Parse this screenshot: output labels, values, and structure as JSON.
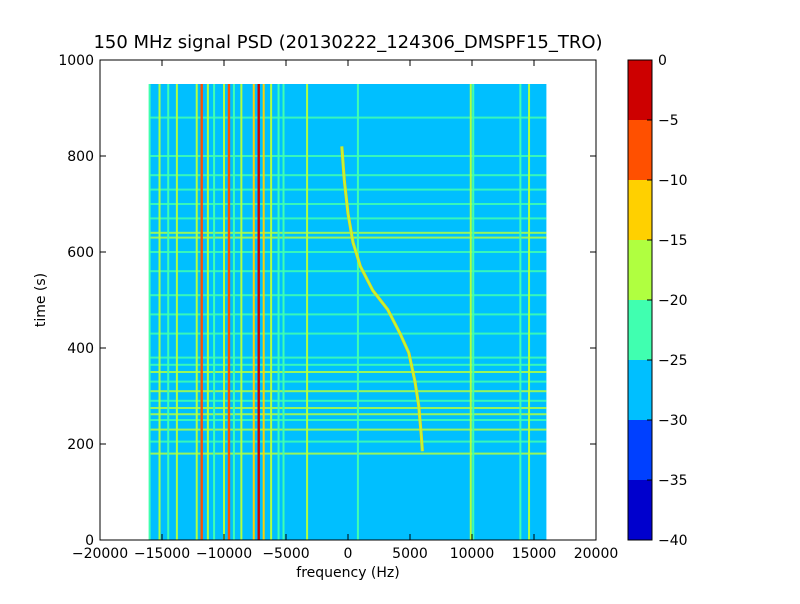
{
  "chart_data": {
    "type": "heatmap",
    "title": "150 MHz signal PSD (20130222_124306_DMSPF15_TRO)",
    "xlabel": "frequency (Hz)",
    "ylabel": "time (s)",
    "xlim": [
      -20000,
      20000
    ],
    "ylim": [
      0,
      1000
    ],
    "xticks": [
      -20000,
      -15000,
      -10000,
      -5000,
      0,
      5000,
      10000,
      15000,
      20000
    ],
    "xtick_labels": [
      "−20000",
      "−15000",
      "−10000",
      "−5000",
      "0",
      "5000",
      "10000",
      "15000",
      "20000"
    ],
    "yticks": [
      0,
      200,
      400,
      600,
      800,
      1000
    ],
    "ytick_labels": [
      "0",
      "200",
      "400",
      "600",
      "800",
      "1000"
    ],
    "data_extent": {
      "freq_range": [
        -16000,
        16000
      ],
      "time_range": [
        0,
        950
      ]
    },
    "background_level": [
      -30,
      -25
    ],
    "colorbar": {
      "levels": [
        -40,
        -35,
        -30,
        -25,
        -20,
        -15,
        -10,
        -5,
        0
      ],
      "tick_labels": [
        "−40",
        "−35",
        "−30",
        "−25",
        "−20",
        "−15",
        "−10",
        "−5",
        "0"
      ],
      "colors": [
        "#0000cd",
        "#0040ff",
        "#00bfff",
        "#40ffb0",
        "#b0ff40",
        "#ffd000",
        "#ff5000",
        "#cd0000"
      ]
    },
    "vertical_lines": [
      {
        "freq": -16000,
        "level": "#40ffb0"
      },
      {
        "freq": -15200,
        "level": "#b0ff40"
      },
      {
        "freq": -14500,
        "level": "#40ffb0"
      },
      {
        "freq": -13800,
        "level": "#b0ff40"
      },
      {
        "freq": -12200,
        "level": "#b0ff40"
      },
      {
        "freq": -11800,
        "level": "#ff5000"
      },
      {
        "freq": -11300,
        "level": "#b0ff40"
      },
      {
        "freq": -10800,
        "level": "#40ffb0"
      },
      {
        "freq": -10000,
        "level": "#b0ff40"
      },
      {
        "freq": -9600,
        "level": "#ff5000"
      },
      {
        "freq": -9200,
        "level": "#40ffb0"
      },
      {
        "freq": -8600,
        "level": "#b0ff40"
      },
      {
        "freq": -7600,
        "level": "#ffd000"
      },
      {
        "freq": -7200,
        "level": "#cd0000"
      },
      {
        "freq": -6800,
        "level": "#ffd000"
      },
      {
        "freq": -6200,
        "level": "#b0ff40"
      },
      {
        "freq": -5600,
        "level": "#40ffb0"
      },
      {
        "freq": -5200,
        "level": "#40ffb0"
      },
      {
        "freq": -3300,
        "level": "#b0ff40"
      },
      {
        "freq": 800,
        "level": "#40ffb0"
      },
      {
        "freq": 9900,
        "level": "#b0ff40"
      },
      {
        "freq": 10100,
        "level": "#40ffb0"
      },
      {
        "freq": 13900,
        "level": "#40ffb0"
      },
      {
        "freq": 14600,
        "level": "#b0ff40"
      }
    ],
    "horizontal_bands": [
      {
        "time": 180,
        "level": "#b0ff40"
      },
      {
        "time": 205,
        "level": "#40ffb0"
      },
      {
        "time": 230,
        "level": "#b0ff40"
      },
      {
        "time": 250,
        "level": "#40ffb0"
      },
      {
        "time": 262,
        "level": "#b0ff40"
      },
      {
        "time": 275,
        "level": "#b0ff40"
      },
      {
        "time": 290,
        "level": "#40ffb0"
      },
      {
        "time": 310,
        "level": "#b0ff40"
      },
      {
        "time": 330,
        "level": "#40ffb0"
      },
      {
        "time": 350,
        "level": "#b0ff40"
      },
      {
        "time": 365,
        "level": "#40ffb0"
      },
      {
        "time": 380,
        "level": "#40ffb0"
      },
      {
        "time": 430,
        "level": "#40ffb0"
      },
      {
        "time": 470,
        "level": "#40ffb0"
      },
      {
        "time": 510,
        "level": "#40ffb0"
      },
      {
        "time": 560,
        "level": "#40ffb0"
      },
      {
        "time": 600,
        "level": "#40ffb0"
      },
      {
        "time": 630,
        "level": "#b0ff40"
      },
      {
        "time": 640,
        "level": "#b0ff40"
      },
      {
        "time": 670,
        "level": "#40ffb0"
      },
      {
        "time": 700,
        "level": "#40ffb0"
      },
      {
        "time": 730,
        "level": "#40ffb0"
      },
      {
        "time": 760,
        "level": "#40ffb0"
      },
      {
        "time": 800,
        "level": "#40ffb0"
      },
      {
        "time": 880,
        "level": "#40ffb0"
      }
    ],
    "doppler_trace": {
      "level": "#b0ff40",
      "points": [
        {
          "freq": 6000,
          "time": 185
        },
        {
          "freq": 5900,
          "time": 220
        },
        {
          "freq": 5700,
          "time": 280
        },
        {
          "freq": 5400,
          "time": 330
        },
        {
          "freq": 4900,
          "time": 390
        },
        {
          "freq": 4200,
          "time": 430
        },
        {
          "freq": 3200,
          "time": 480
        },
        {
          "freq": 2000,
          "time": 520
        },
        {
          "freq": 1000,
          "time": 570
        },
        {
          "freq": 400,
          "time": 620
        },
        {
          "freq": 0,
          "time": 680
        },
        {
          "freq": -300,
          "time": 750
        },
        {
          "freq": -500,
          "time": 820
        }
      ]
    }
  }
}
